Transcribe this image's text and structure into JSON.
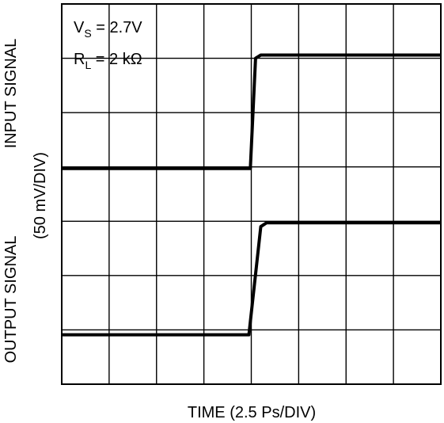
{
  "chart_data": {
    "type": "line",
    "title": "",
    "xlabel": "TIME (2.5 Ps/DIV)",
    "ylabel_top": "INPUT SIGNAL",
    "ylabel_middle": "(50 mV/DIV)",
    "ylabel_bottom": "OUTPUT SIGNAL",
    "grid": true,
    "x_divisions": 8,
    "y_divisions": 7,
    "xlim": [
      0,
      8
    ],
    "ylim": [
      0,
      7
    ],
    "annotations": {
      "vs": {
        "main": "V",
        "sub": "S",
        "rest": " = 2.7V"
      },
      "rl": {
        "main": "R",
        "sub": "L",
        "rest": " = 2 kΩ"
      }
    },
    "series": [
      {
        "x": [
          0,
          3.98,
          4.09,
          4.2,
          8
        ],
        "y": [
          3.97,
          3.97,
          6.0,
          6.06,
          6.06
        ]
      },
      {
        "x": [
          0,
          3.95,
          4.2,
          4.32,
          8
        ],
        "y": [
          0.91,
          0.91,
          2.9,
          2.97,
          2.97
        ]
      }
    ]
  }
}
